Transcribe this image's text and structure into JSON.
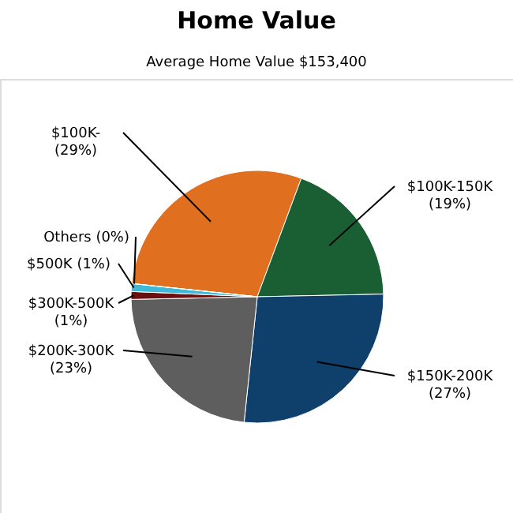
{
  "chart_data": {
    "type": "pie",
    "title": "Home Value",
    "subtitle": "Average Home Value  $153,400",
    "categories": [
      "$100K-",
      "$100K-150K",
      "$150K-200K",
      "$200K-300K",
      "$300K-500K",
      "$500K",
      "Others"
    ],
    "values": [
      29,
      19,
      27,
      23,
      1,
      1,
      0
    ],
    "colors": [
      "#e07020",
      "#1a5e34",
      "#0f3f6b",
      "#5e5e5e",
      "#6b1010",
      "#40b8d8",
      "#8090a0"
    ],
    "value_labels": [
      "(29%)",
      "(19%)",
      "(27%)",
      "(23%)",
      "(1%)",
      "(1%)",
      "(0%)"
    ],
    "legend": false
  }
}
